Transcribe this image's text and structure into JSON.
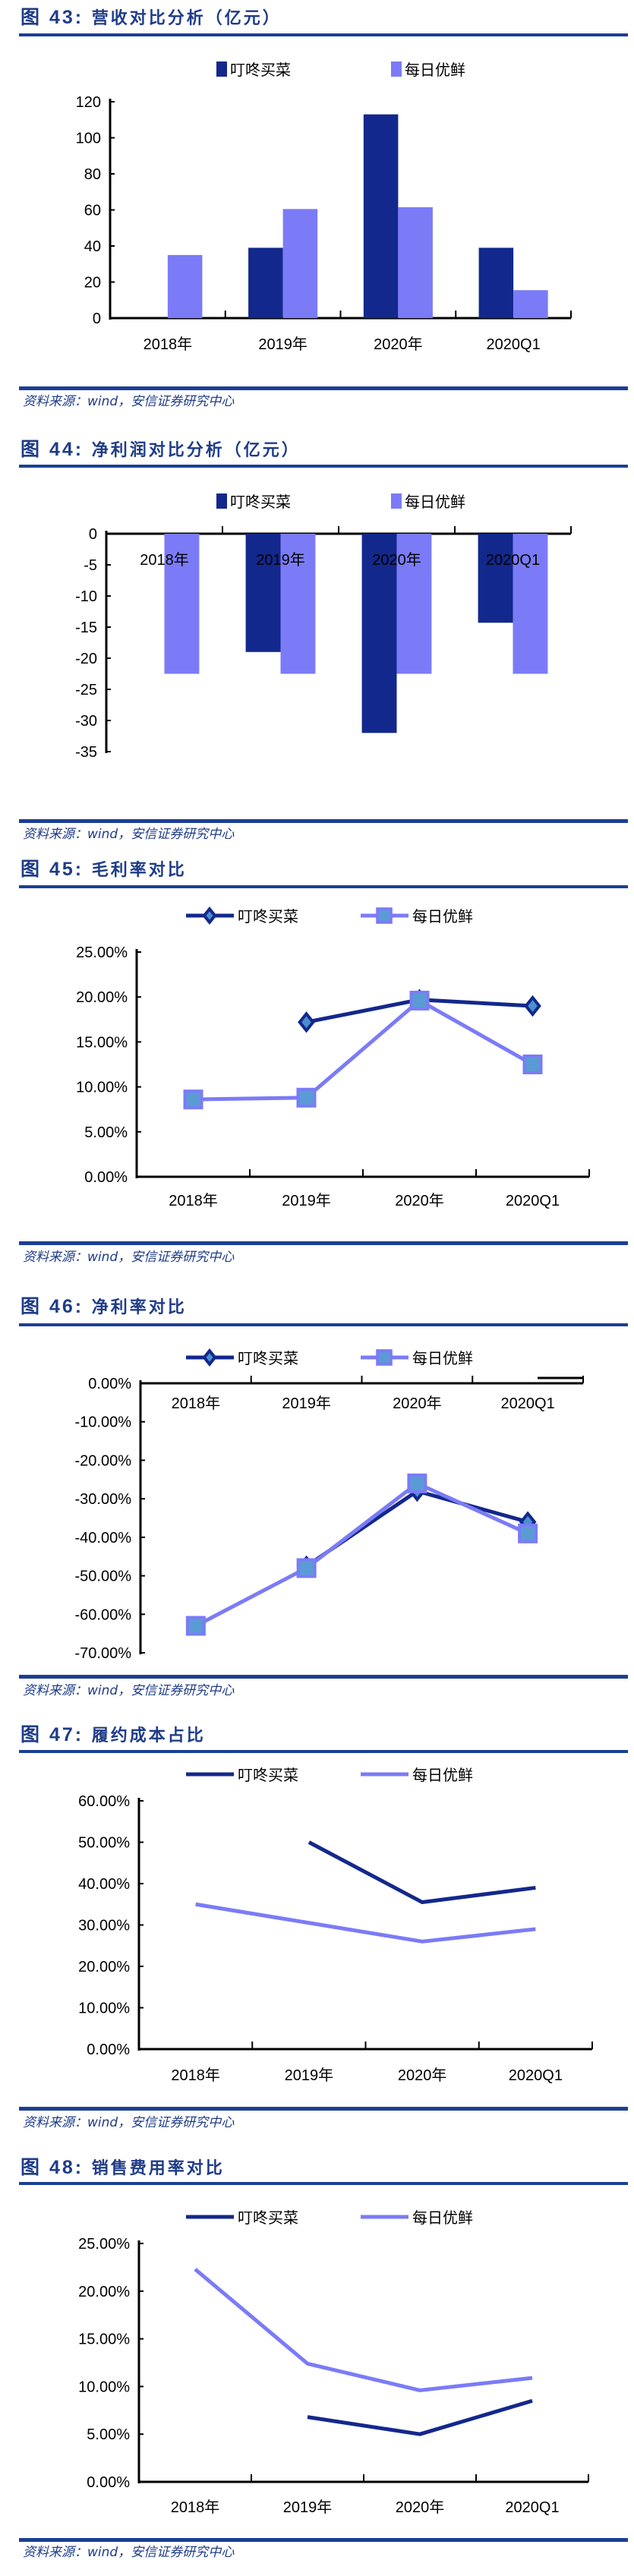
{
  "source_text": "资料来源：wind，安信证券研究中心",
  "chart_data": [
    {
      "type": "bar",
      "fig": "图 43:",
      "title": "营收对比分析（亿元）",
      "categories": [
        "2018年",
        "2019年",
        "2020年",
        "2020Q1"
      ],
      "series": [
        {
          "name": "叮咚买菜",
          "color": "#13288C",
          "values": [
            null,
            39,
            113,
            39
          ]
        },
        {
          "name": "每日优鲜",
          "color": "#7B7BF7",
          "values": [
            35,
            60.5,
            61.5,
            15.5
          ]
        }
      ],
      "ylim": [
        0,
        120
      ],
      "yticks": [
        "0",
        "20",
        "40",
        "60",
        "80",
        "100",
        "120"
      ],
      "ytick_values": [
        0,
        20,
        40,
        60,
        80,
        100,
        120
      ],
      "legend": "top-center"
    },
    {
      "type": "bar",
      "fig": "图 44:",
      "title": "净利润对比分析（亿元）",
      "categories": [
        "2018年",
        "2019年",
        "2020年",
        "2020Q1"
      ],
      "series": [
        {
          "name": "叮咚买菜",
          "color": "#13288C",
          "values": [
            null,
            -19,
            -32,
            -14.3
          ]
        },
        {
          "name": "每日优鲜",
          "color": "#7B7BF7",
          "values": [
            -22.5,
            -22.5,
            -22.5,
            -22.5
          ]
        }
      ],
      "ylim": [
        -35,
        0
      ],
      "yticks": [
        "0",
        "-5",
        "-10",
        "-15",
        "-20",
        "-25",
        "-30",
        "-35"
      ],
      "ytick_values": [
        0,
        -5,
        -10,
        -15,
        -20,
        -25,
        -30,
        -35
      ],
      "legend": "top-center"
    },
    {
      "type": "line",
      "fig": "图 45:",
      "title": "毛利率对比",
      "categories": [
        "2018年",
        "2019年",
        "2020年",
        "2020Q1"
      ],
      "series": [
        {
          "name": "叮咚买菜",
          "color": "#13288C",
          "marker": "diamond",
          "values": [
            null,
            17.2,
            19.7,
            19.0
          ]
        },
        {
          "name": "每日优鲜",
          "color": "#7B7BF7",
          "marker": "square",
          "values": [
            8.6,
            8.8,
            19.6,
            12.5
          ]
        }
      ],
      "ylim": [
        0,
        25
      ],
      "yticks": [
        "0.00%",
        "5.00%",
        "10.00%",
        "15.00%",
        "20.00%",
        "25.00%"
      ],
      "ytick_values": [
        0,
        5,
        10,
        15,
        20,
        25
      ],
      "legend": "top-center"
    },
    {
      "type": "line",
      "fig": "图 46:",
      "title": "净利率对比",
      "categories": [
        "2018年",
        "2019年",
        "2020年",
        "2020Q1"
      ],
      "series": [
        {
          "name": "叮咚买菜",
          "color": "#13288C",
          "marker": "diamond",
          "values": [
            null,
            -47.5,
            -28,
            -36
          ]
        },
        {
          "name": "每日优鲜",
          "color": "#7B7BF7",
          "marker": "square",
          "values": [
            -63,
            -48,
            -26,
            -39
          ]
        }
      ],
      "ylim": [
        -70,
        0
      ],
      "yticks": [
        "0.00%",
        "-10.00%",
        "-20.00%",
        "-30.00%",
        "-40.00%",
        "-50.00%",
        "-60.00%",
        "-70.00%"
      ],
      "ytick_values": [
        0,
        -10,
        -20,
        -30,
        -40,
        -50,
        -60,
        -70
      ],
      "legend": "top-center"
    },
    {
      "type": "line",
      "fig": "图 47:",
      "title": "履约成本占比",
      "categories": [
        "2018年",
        "2019年",
        "2020年",
        "2020Q1"
      ],
      "series": [
        {
          "name": "叮咚买菜",
          "color": "#13288C",
          "values": [
            null,
            50,
            35.5,
            39
          ]
        },
        {
          "name": "每日优鲜",
          "color": "#7B7BF7",
          "values": [
            35,
            30.5,
            26,
            29
          ]
        }
      ],
      "ylim": [
        0,
        60
      ],
      "yticks": [
        "0.00%",
        "10.00%",
        "20.00%",
        "30.00%",
        "40.00%",
        "50.00%",
        "60.00%"
      ],
      "ytick_values": [
        0,
        10,
        20,
        30,
        40,
        50,
        60
      ],
      "legend": "top-center"
    },
    {
      "type": "line",
      "fig": "图 48:",
      "title": "销售费用率对比",
      "categories": [
        "2018年",
        "2019年",
        "2020年",
        "2020Q1"
      ],
      "series": [
        {
          "name": "叮咚买菜",
          "color": "#13288C",
          "values": [
            null,
            6.8,
            5.0,
            8.5
          ]
        },
        {
          "name": "每日优鲜",
          "color": "#7B7BF7",
          "values": [
            22.3,
            12.4,
            9.6,
            10.9
          ]
        }
      ],
      "ylim": [
        0,
        25
      ],
      "yticks": [
        "0.00%",
        "5.00%",
        "10.00%",
        "15.00%",
        "20.00%",
        "25.00%"
      ],
      "ytick_values": [
        0,
        5,
        10,
        15,
        20,
        25
      ],
      "legend": "top-center"
    }
  ]
}
